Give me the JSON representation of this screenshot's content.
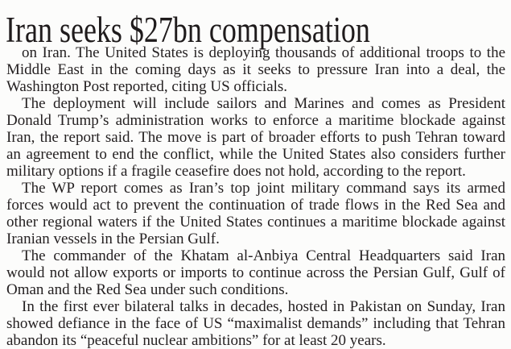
{
  "headline": "Iran seeks $27bn compensation",
  "paragraphs": [
    {
      "lines": [
        "on Iran. The United States is deploying thousands of additional troops to the",
        "Middle East in the coming days as it seeks to pressure Iran into a deal, the",
        "Washington Post reported, citing US officials."
      ]
    },
    {
      "lines": [
        "The deployment will include sailors and Marines and comes as President",
        "Donald Trump’s administration works to enforce a maritime blockade against",
        "Iran, the report said. The move is part of broader efforts to push Tehran toward",
        "an agreement to end the conflict, while the United States also considers further",
        "military options if a fragile ceasefire does not hold, according to the report."
      ]
    },
    {
      "lines": [
        "The WP report comes as Iran’s top joint military command says its armed",
        "forces would act to prevent the continuation of trade flows in the Red Sea and",
        "other regional waters if the United States continues a maritime blockade against",
        "Iranian vessels in the Persian Gulf."
      ]
    },
    {
      "lines": [
        "The commander of the Khatam al-Anbiya Central Headquarters said Iran",
        "would not allow exports or imports to continue across the Persian Gulf, Gulf of",
        "Oman and the Red Sea under such conditions."
      ]
    },
    {
      "lines": [
        "In the first ever bilateral talks in decades, hosted in Pakistan on Sunday, Iran",
        "showed defiance in the face of US “maximalist demands” including that Tehran",
        "abandon its “peaceful nuclear ambitions” for at least 20 years."
      ]
    }
  ]
}
